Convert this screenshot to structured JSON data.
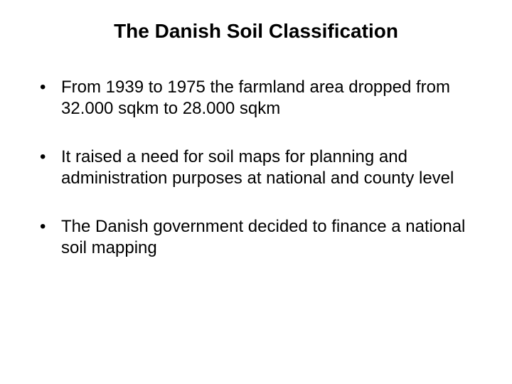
{
  "slide": {
    "title": "The Danish Soil Classification",
    "bullets": [
      "From 1939 to 1975 the farmland area dropped from 32.000 sqkm to 28.000 sqkm",
      "It raised a need for soil maps for planning and administration purposes at national and county level",
      "The Danish government decided to finance a national soil mapping"
    ],
    "styling": {
      "background_color": "#ffffff",
      "text_color": "#000000",
      "title_fontsize": 28,
      "title_fontweight": "bold",
      "body_fontsize": 24,
      "font_family": "Arial"
    }
  }
}
